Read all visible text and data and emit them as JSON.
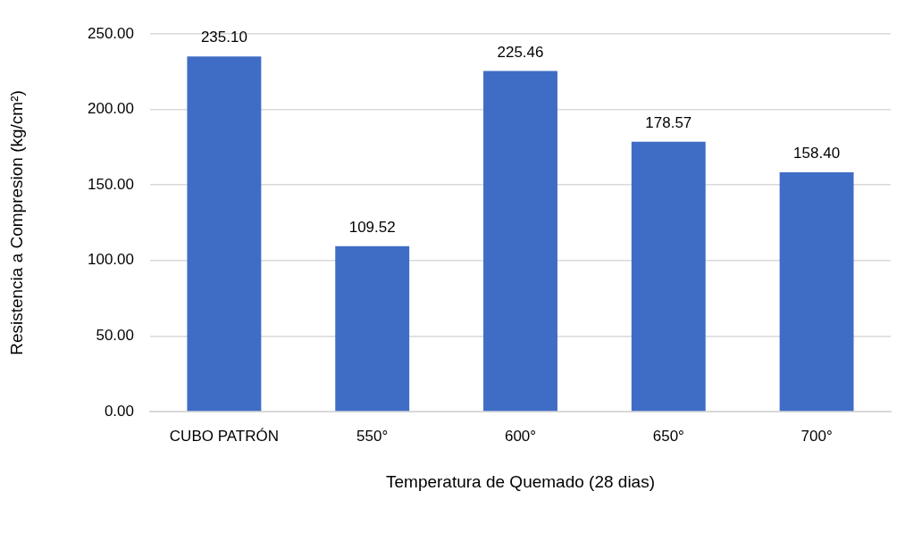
{
  "chart_data": {
    "type": "bar",
    "xlabel": "Temperatura de Quemado (28 dias)",
    "ylabel": "Resistencia a Compresion (kg/cm²)",
    "categories": [
      "CUBO PATRÓN",
      "550°",
      "600°",
      "650°",
      "700°"
    ],
    "values": [
      235.1,
      109.52,
      225.46,
      178.57,
      158.4
    ],
    "value_labels": [
      "235.10",
      "109.52",
      "225.46",
      "178.57",
      "158.40"
    ],
    "color": "#3f6dc5",
    "ylim": [
      0,
      250
    ],
    "yticks": [
      {
        "value": 0,
        "label": "0.00"
      },
      {
        "value": 50,
        "label": "50.00"
      },
      {
        "value": 100,
        "label": "100.00"
      },
      {
        "value": 150,
        "label": "150.00"
      },
      {
        "value": 200,
        "label": "200.00"
      },
      {
        "value": 250,
        "label": "250.00"
      }
    ],
    "grid": "y",
    "legend": false
  }
}
